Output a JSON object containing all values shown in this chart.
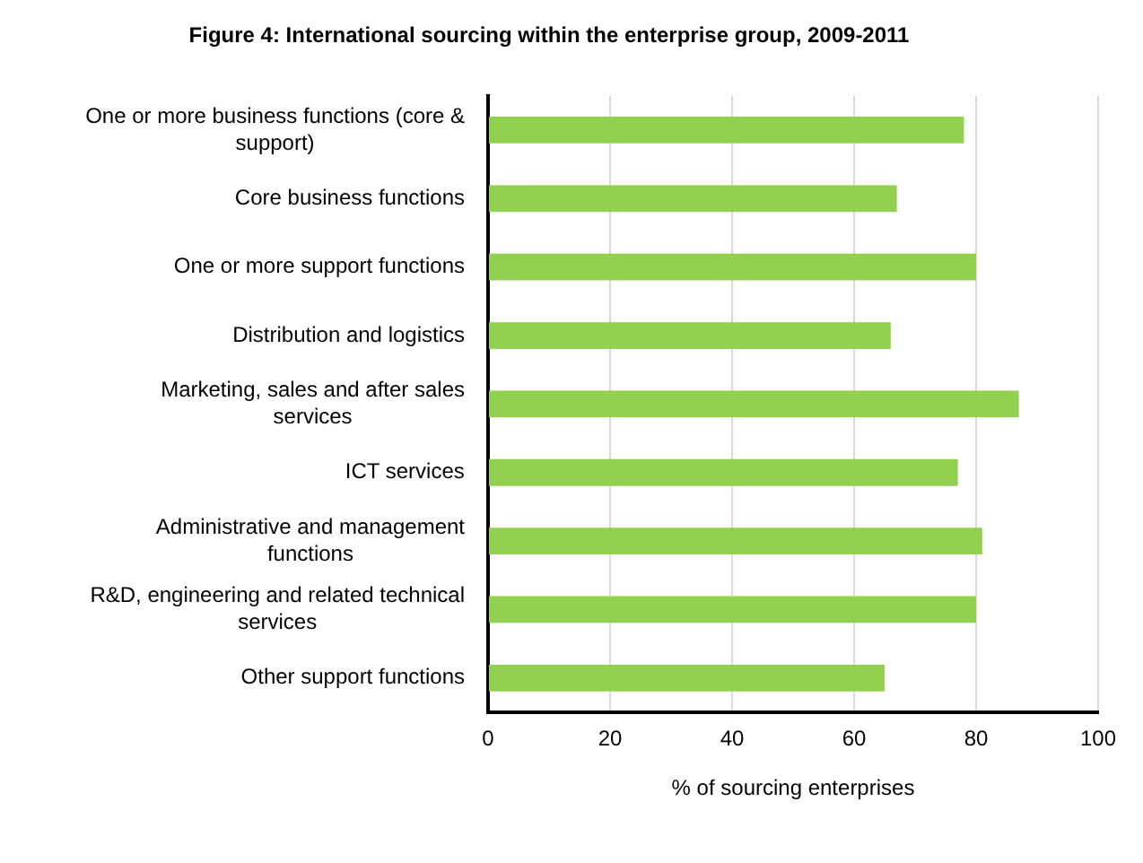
{
  "chart_data": {
    "type": "bar",
    "orientation": "horizontal",
    "title": "Figure 4: International sourcing within the enterprise group, 2009-2011",
    "xlabel": "% of sourcing enterprises",
    "categories": [
      "One or more business functions (core & support)",
      "Core business functions",
      "One or more support functions",
      "Distribution and logistics",
      "Marketing, sales and after sales services",
      "ICT services",
      "Administrative and management functions",
      "R&D, engineering and related technical services",
      "Other support functions"
    ],
    "values": [
      78,
      67,
      80,
      66,
      87,
      77,
      81,
      80,
      65
    ],
    "color": "#92d050",
    "xlim": [
      0,
      100
    ],
    "xticks": [
      0,
      20,
      40,
      60,
      80,
      100
    ],
    "grid": "x"
  }
}
